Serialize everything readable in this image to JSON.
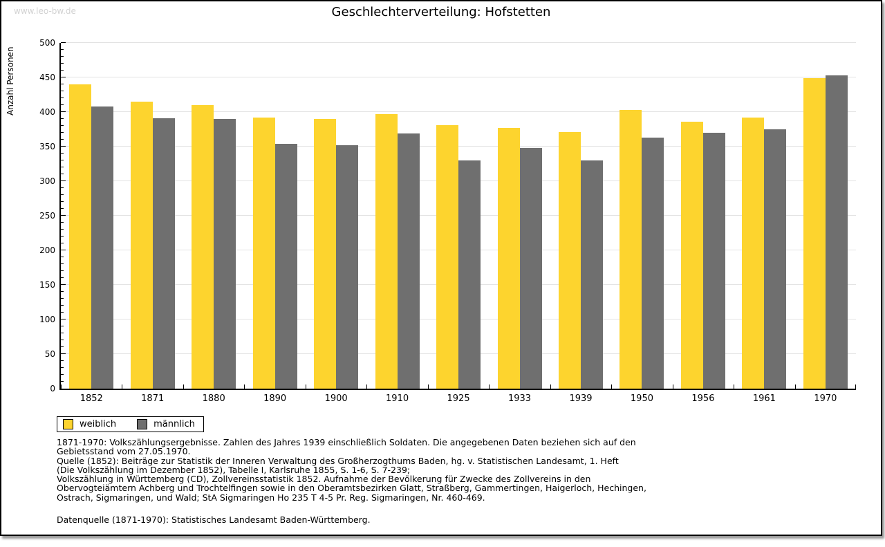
{
  "page": {
    "watermark": "www.leo-bw.de",
    "title": "Geschlechterverteilung: Hofstetten"
  },
  "chart_data": {
    "type": "bar",
    "title": "Geschlechterverteilung: Hofstetten",
    "xlabel": "",
    "ylabel": "Anzahl Personen",
    "ylim": [
      0,
      500
    ],
    "ytick_step": 50,
    "y_minor_tick_step": 10,
    "grid": true,
    "legend_position": "bottom-left",
    "categories": [
      "1852",
      "1871",
      "1880",
      "1890",
      "1900",
      "1910",
      "1925",
      "1933",
      "1939",
      "1950",
      "1956",
      "1961",
      "1970"
    ],
    "series": [
      {
        "name": "weiblich",
        "color": "#fdd42e",
        "values": [
          440,
          415,
          410,
          392,
          390,
          397,
          381,
          377,
          371,
          403,
          386,
          392,
          449
        ]
      },
      {
        "name": "männlich",
        "color": "#6f6f6f",
        "values": [
          408,
          391,
          390,
          354,
          352,
          369,
          330,
          348,
          330,
          363,
          370,
          375,
          453
        ]
      }
    ]
  },
  "colors": {
    "weiblich": "#fdd42e",
    "maennlich": "#6f6f6f",
    "gridline": "#e3e3e3",
    "watermark": "#d2d2d2"
  },
  "footnote_lines": [
    "1871-1970: Volkszählungsergebnisse. Zahlen des Jahres 1939 einschließlich Soldaten. Die angegebenen Daten beziehen sich auf den",
    "Gebietsstand vom 27.05.1970.",
    "Quelle (1852): Beiträge zur Statistik der Inneren Verwaltung des Großherzogthums Baden, hg. v. Statistischen Landesamt, 1. Heft",
    "(Die Volkszählung im Dezember 1852), Tabelle I, Karlsruhe 1855, S. 1-6, S. 7-239;",
    "Volkszählung in Württemberg (CD), Zollvereinsstatistik 1852. Aufnahme der Bevölkerung für Zwecke des Zollvereins in den",
    "Obervogteiämtern Achberg und Trochtelfingen sowie in den Oberamtsbezirken Glatt, Straßberg, Gammertingen, Haigerloch, Hechingen,",
    "Ostrach, Sigmaringen, und Wald; StA Sigmaringen Ho 235 T 4-5 Pr. Reg. Sigmaringen, Nr. 460-469."
  ],
  "datasource": "Datenquelle (1871-1970): Statistisches Landesamt Baden-Württemberg."
}
